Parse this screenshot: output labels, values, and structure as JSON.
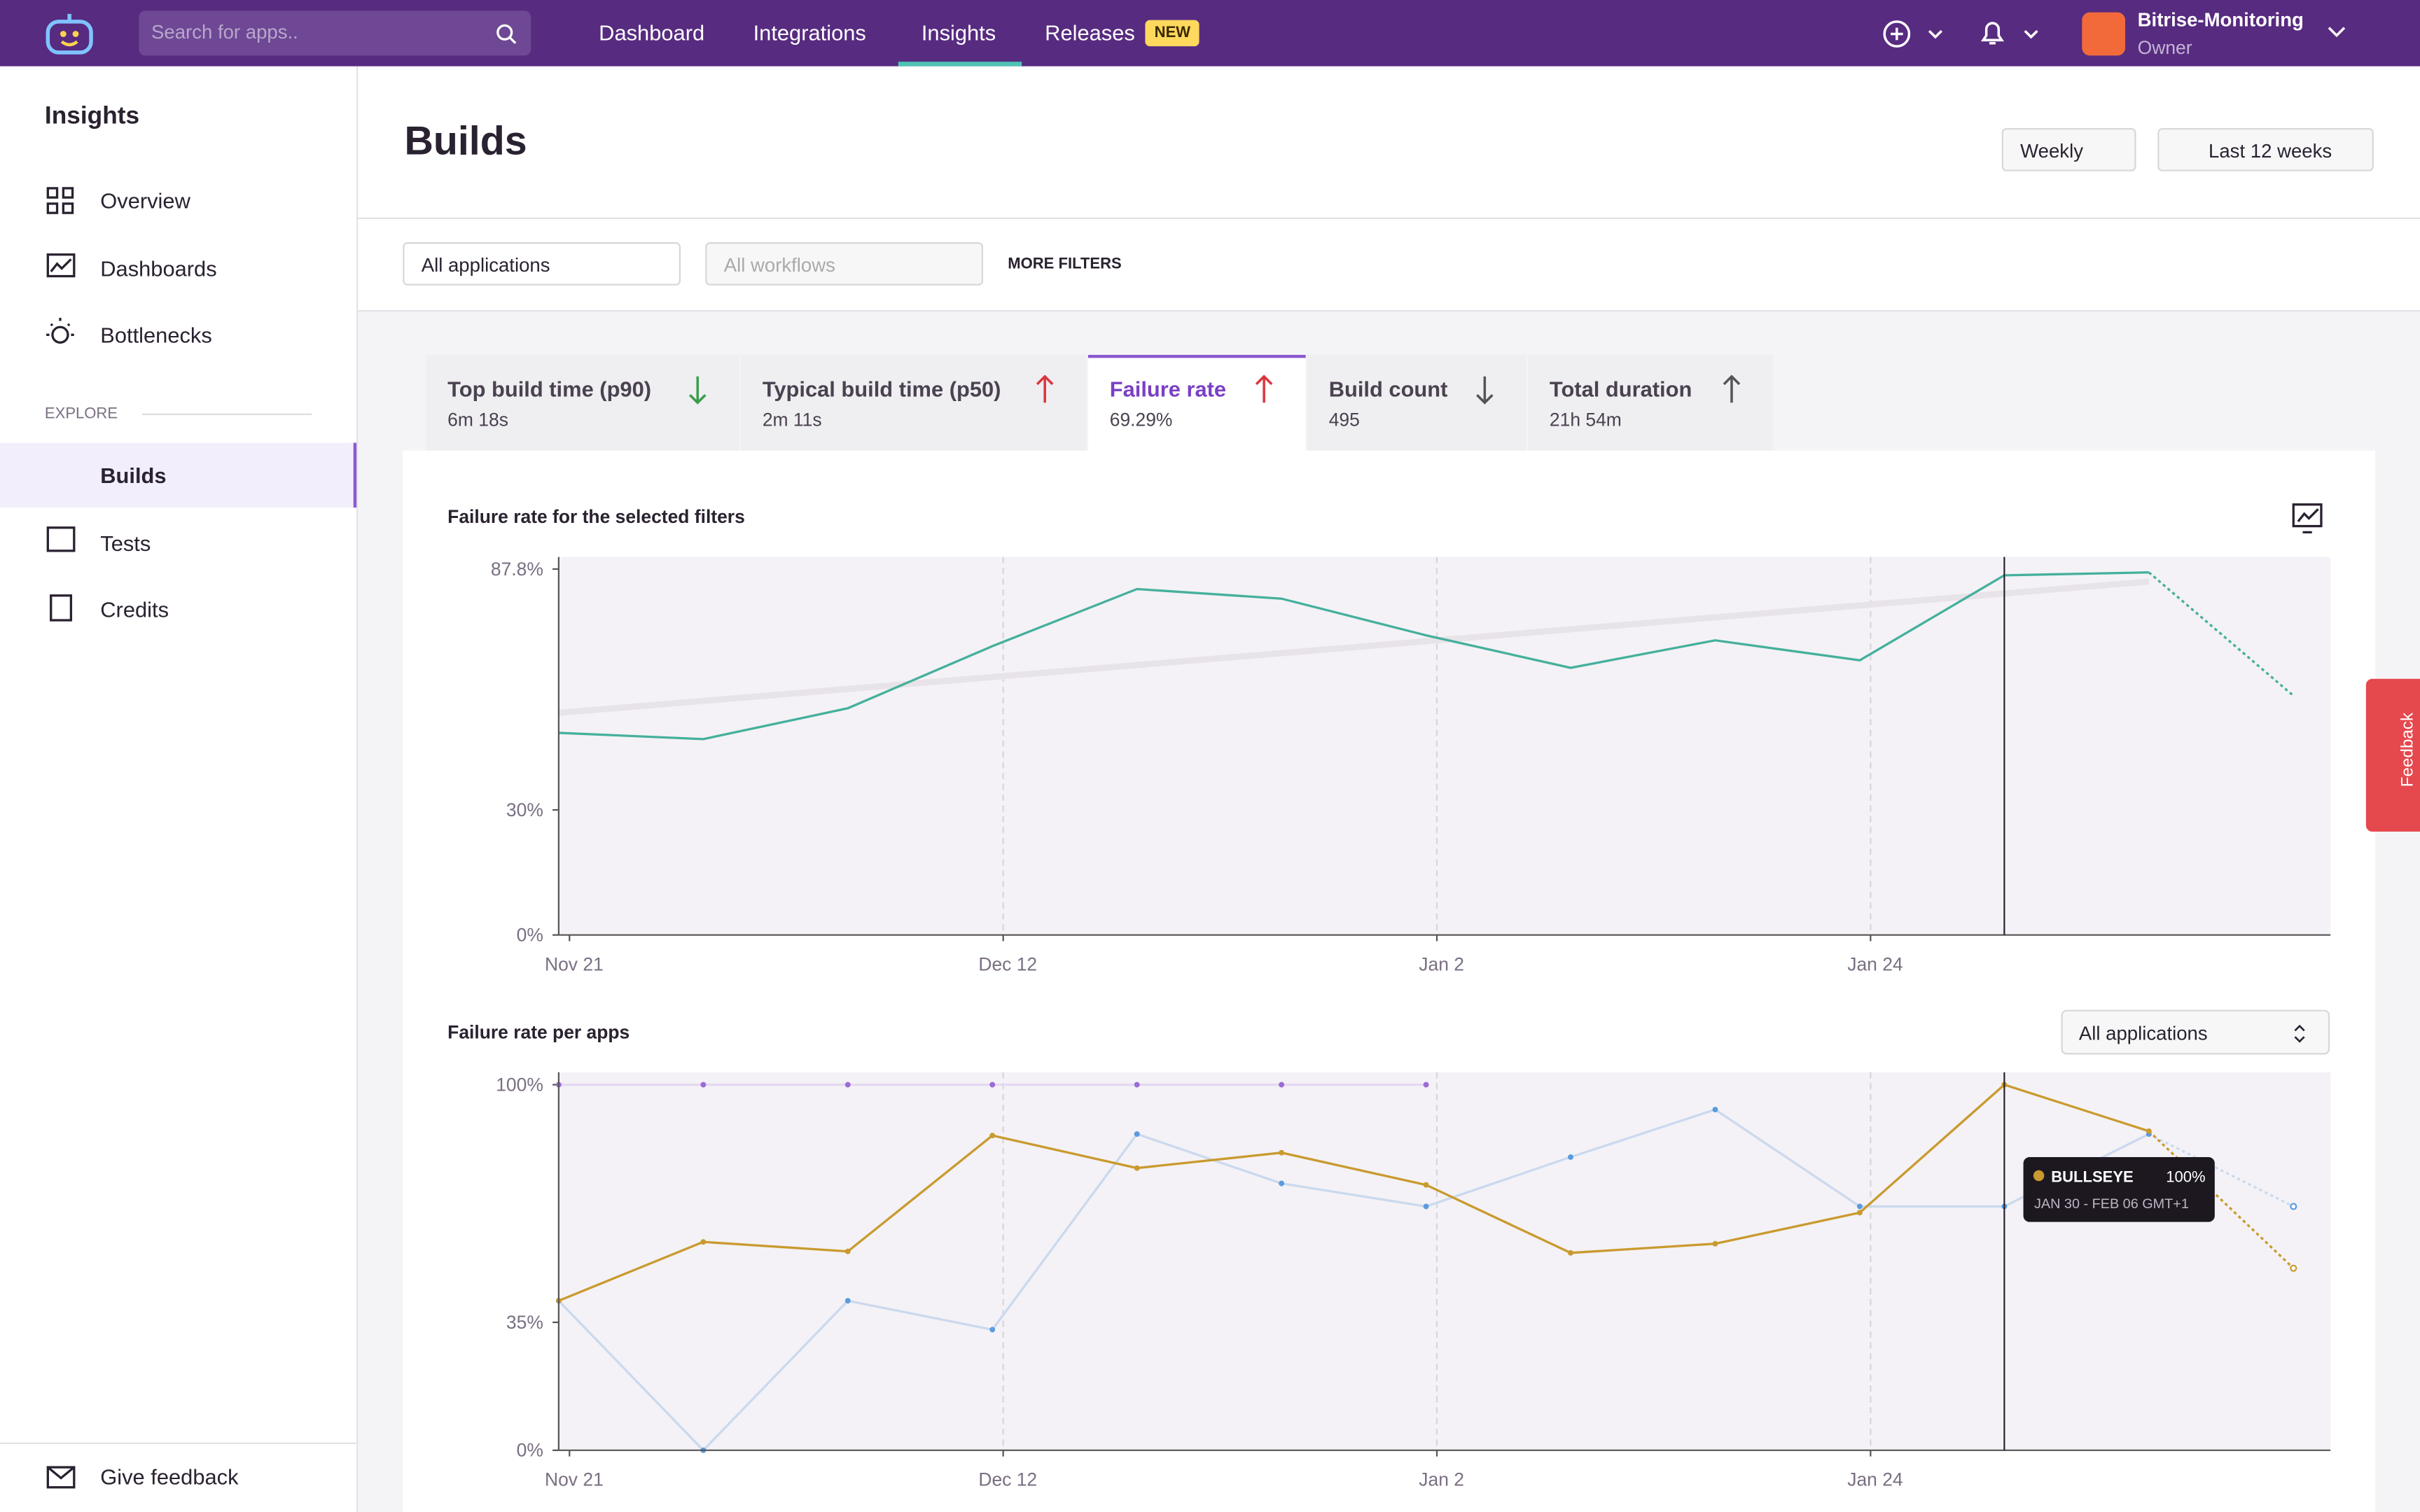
{
  "nav": {
    "search_placeholder": "Search for apps..",
    "links": [
      "Dashboard",
      "Integrations",
      "Insights",
      "Releases"
    ],
    "badge": "NEW",
    "account": "Bitrise-Monitoring",
    "role": "Owner"
  },
  "sidebar": {
    "title": "Insights",
    "items": [
      "Overview",
      "Dashboards",
      "Bottlenecks"
    ],
    "section": "EXPLORE",
    "explore": [
      "Builds",
      "Tests",
      "Credits"
    ],
    "feedback": "Give feedback"
  },
  "header": {
    "title": "Builds",
    "period": "Weekly",
    "range": "Last 12 weeks"
  },
  "filters": {
    "apps": "All applications",
    "workflows": "All workflows",
    "more": "MORE FILTERS"
  },
  "tabs": [
    {
      "label": "Top build time (p90)",
      "value": "6m 18s"
    },
    {
      "label": "Typical build time (p50)",
      "value": "2m 11s"
    },
    {
      "label": "Failure rate",
      "value": "69.29%"
    },
    {
      "label": "Build count",
      "value": "495"
    },
    {
      "label": "Total duration",
      "value": "21h 54m"
    }
  ],
  "feedback_tab": "Feedback",
  "chart_data": [
    {
      "type": "line",
      "title": "Failure rate for the selected filters",
      "categories": [
        "Nov 21",
        null,
        null,
        "Dec 12",
        null,
        null,
        "Jan 2",
        null,
        null,
        "Jan 24",
        null,
        null,
        null
      ],
      "series": [
        {
          "color": "#45b09c",
          "values": [
            48.5,
            47.0,
            54.4,
            69.3,
            83.0,
            80.7,
            71.9,
            64.1,
            70.7,
            65.9,
            86.3,
            87.0,
            57.4
          ],
          "dashed_last": true
        }
      ],
      "trend": {
        "x": [
          0,
          11
        ],
        "values": [
          53.3,
          84.8
        ],
        "color": "#e7e3e8"
      },
      "ylim": [
        0,
        90.7
      ],
      "yticks": [
        {
          "value": 0,
          "label": "0%"
        },
        {
          "value": 30,
          "label": "30%"
        },
        {
          "value": 87.8,
          "label": "87.8%"
        }
      ],
      "cursor_index": 10,
      "markers": false
    },
    {
      "type": "line",
      "title": "Failure rate per apps",
      "selector": "All applications",
      "categories": [
        "Nov 21",
        null,
        null,
        "Dec 12",
        null,
        null,
        "Jan 2",
        null,
        null,
        "Jan 24",
        null,
        null,
        null
      ],
      "series": [
        {
          "color": "#e4d9f2",
          "dot_color": "#9b6bd6",
          "values": [
            100,
            100,
            100,
            100,
            100,
            100,
            100,
            null,
            null,
            null,
            null,
            null,
            null
          ],
          "dashed_last": false
        },
        {
          "color": "#cbd9ee",
          "dot_color": "#5b9be0",
          "values": [
            40.9,
            0,
            40.9,
            33,
            86.5,
            73,
            66.7,
            80.2,
            93.2,
            66.7,
            66.7,
            86.5,
            66.7
          ],
          "dashed_last": true
        },
        {
          "name": "BULLSEYE",
          "color": "#c99a2e",
          "dot_color": "#c99a2e",
          "values": [
            40.9,
            57,
            54.4,
            86.1,
            77.2,
            81.4,
            72.6,
            54,
            56.5,
            65,
            100,
            87.3,
            49.8
          ],
          "value_labels": [
            null,
            null,
            null,
            null,
            null,
            null,
            null,
            null,
            null,
            null,
            "100%",
            null,
            null
          ],
          "dashed_last": true
        }
      ],
      "ylim": [
        0,
        103.4
      ],
      "yticks": [
        {
          "value": 0,
          "label": "0%"
        },
        {
          "value": 35,
          "label": "35%"
        },
        {
          "value": 100,
          "label": "100%"
        }
      ],
      "cursor_index": 10,
      "markers": true,
      "tooltip": {
        "series": 2,
        "index": 10,
        "range": "JAN 30 - FEB 06 GMT+1"
      }
    }
  ]
}
